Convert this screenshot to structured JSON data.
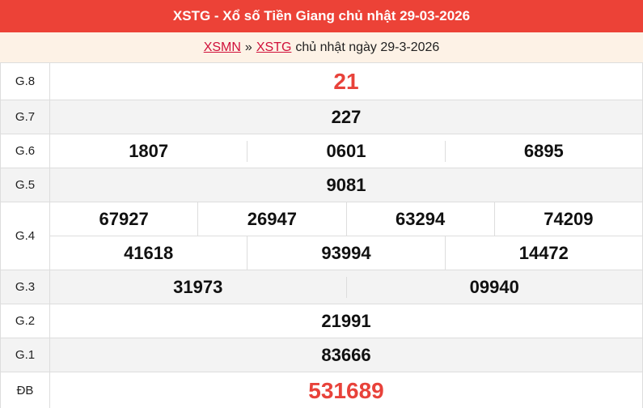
{
  "header": {
    "title": "XSTG - Xổ số Tiền Giang chủ nhật 29-03-2026"
  },
  "breadcrumb": {
    "link1": "XSMN",
    "separator": "»",
    "link2": "XSTG",
    "text": "chủ nhật ngày 29-3-2026"
  },
  "colors": {
    "header_bg": "#ec4237",
    "highlight": "#e8423a",
    "link": "#d0103a"
  },
  "prizes": {
    "g8": {
      "label": "G.8",
      "values": [
        "21"
      ]
    },
    "g7": {
      "label": "G.7",
      "values": [
        "227"
      ]
    },
    "g6": {
      "label": "G.6",
      "values": [
        "1807",
        "0601",
        "6895"
      ]
    },
    "g5": {
      "label": "G.5",
      "values": [
        "9081"
      ]
    },
    "g4": {
      "label": "G.4",
      "values": [
        "67927",
        "26947",
        "63294",
        "74209",
        "41618",
        "93994",
        "14472"
      ]
    },
    "g3": {
      "label": "G.3",
      "values": [
        "31973",
        "09940"
      ]
    },
    "g2": {
      "label": "G.2",
      "values": [
        "21991"
      ]
    },
    "g1": {
      "label": "G.1",
      "values": [
        "83666"
      ]
    },
    "db": {
      "label": "ĐB",
      "values": [
        "531689"
      ]
    }
  }
}
